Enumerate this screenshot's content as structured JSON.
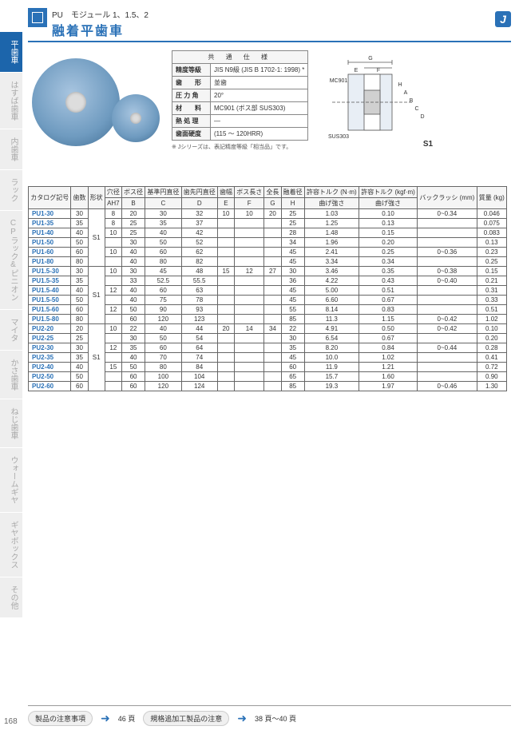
{
  "header": {
    "subtitle": "PU　モジュール 1、1.5、2",
    "title": "融着平歯車",
    "badge": "J"
  },
  "sidebar": {
    "items": [
      {
        "label": "平歯車",
        "active": true
      },
      {
        "label": "はすば歯車",
        "active": false
      },
      {
        "label": "内歯車",
        "active": false
      },
      {
        "label": "ラック",
        "active": false
      },
      {
        "label": "CPラック&ピニオン",
        "active": false
      },
      {
        "label": "マイタ",
        "active": false
      },
      {
        "label": "かさ歯車",
        "active": false
      },
      {
        "label": "ねじ歯車",
        "active": false
      },
      {
        "label": "ウォームギヤ",
        "active": false
      },
      {
        "label": "ギヤボックス",
        "active": false
      },
      {
        "label": "その他",
        "active": false
      }
    ]
  },
  "spec": {
    "caption": "共 通 仕 様",
    "rows": [
      {
        "k": "精度等級",
        "v": "JIS N9級 (JIS B 1702-1: 1998) *"
      },
      {
        "k": "歯　　形",
        "v": "並歯"
      },
      {
        "k": "圧 力 角",
        "v": "20°"
      },
      {
        "k": "材　　料",
        "v": "MC901 (ボス部 SUS303)"
      },
      {
        "k": "熱 処 理",
        "v": "—"
      },
      {
        "k": "歯面硬度",
        "v": "(115 ～ 120HRR)"
      }
    ],
    "note": "※ Jシリーズは、表記精度等級「相当品」です。"
  },
  "diagram": {
    "labels": {
      "G": "G",
      "E": "E",
      "F": "F",
      "MC": "MC901",
      "SUS": "SUS303",
      "H": "H",
      "A": "A",
      "B": "B",
      "C": "C",
      "D": "D",
      "S1": "S1"
    }
  },
  "table": {
    "headers1": [
      "カタログ記号",
      "歯数",
      "形状",
      "穴径",
      "ボス径",
      "基準円直径",
      "歯先円直径",
      "歯幅",
      "ボス長さ",
      "全長",
      "融着径",
      "許容トルク (N·m)",
      "許容トルク (kgf·m)",
      "バックラッシ (mm)",
      "質量 (kg)"
    ],
    "headers2": [
      "AH7",
      "B",
      "C",
      "D",
      "E",
      "F",
      "G",
      "H",
      "曲げ強さ",
      "曲げ強さ"
    ],
    "groups": [
      {
        "shape": "S1",
        "rows": [
          {
            "cat": "PU1-30",
            "n": "30",
            "a": "8",
            "b": "20",
            "c": "30",
            "d": "32",
            "e": "10",
            "f": "10",
            "g": "20",
            "h": "25",
            "t1": "1.03",
            "t2": "0.10",
            "bl": "0~0.34",
            "m": "0.046"
          },
          {
            "cat": "PU1-35",
            "n": "35",
            "a": "8",
            "b": "25",
            "c": "35",
            "d": "37",
            "e": "",
            "f": "",
            "g": "",
            "h": "25",
            "t1": "1.25",
            "t2": "0.13",
            "bl": "",
            "m": "0.075"
          },
          {
            "cat": "PU1-40",
            "n": "40",
            "a": "10",
            "b": "25",
            "c": "40",
            "d": "42",
            "e": "",
            "f": "",
            "g": "",
            "h": "28",
            "t1": "1.48",
            "t2": "0.15",
            "bl": "",
            "m": "0.083"
          },
          {
            "cat": "PU1-50",
            "n": "50",
            "a": "",
            "b": "30",
            "c": "50",
            "d": "52",
            "e": "",
            "f": "",
            "g": "",
            "h": "34",
            "t1": "1.96",
            "t2": "0.20",
            "bl": "",
            "m": "0.13"
          },
          {
            "cat": "PU1-60",
            "n": "60",
            "a": "10",
            "b": "40",
            "c": "60",
            "d": "62",
            "e": "",
            "f": "",
            "g": "",
            "h": "45",
            "t1": "2.41",
            "t2": "0.25",
            "bl": "0~0.36",
            "m": "0.23"
          },
          {
            "cat": "PU1-80",
            "n": "80",
            "a": "",
            "b": "40",
            "c": "80",
            "d": "82",
            "e": "",
            "f": "",
            "g": "",
            "h": "45",
            "t1": "3.34",
            "t2": "0.34",
            "bl": "",
            "m": "0.25"
          }
        ]
      },
      {
        "shape": "S1",
        "rows": [
          {
            "cat": "PU1.5-30",
            "n": "30",
            "a": "10",
            "b": "30",
            "c": "45",
            "d": "48",
            "e": "15",
            "f": "12",
            "g": "27",
            "h": "30",
            "t1": "3.46",
            "t2": "0.35",
            "bl": "0~0.38",
            "m": "0.15"
          },
          {
            "cat": "PU1.5-35",
            "n": "35",
            "a": "",
            "b": "33",
            "c": "52.5",
            "d": "55.5",
            "e": "",
            "f": "",
            "g": "",
            "h": "36",
            "t1": "4.22",
            "t2": "0.43",
            "bl": "0~0.40",
            "m": "0.21"
          },
          {
            "cat": "PU1.5-40",
            "n": "40",
            "a": "12",
            "b": "40",
            "c": "60",
            "d": "63",
            "e": "",
            "f": "",
            "g": "",
            "h": "45",
            "t1": "5.00",
            "t2": "0.51",
            "bl": "",
            "m": "0.31"
          },
          {
            "cat": "PU1.5-50",
            "n": "50",
            "a": "",
            "b": "40",
            "c": "75",
            "d": "78",
            "e": "",
            "f": "",
            "g": "",
            "h": "45",
            "t1": "6.60",
            "t2": "0.67",
            "bl": "",
            "m": "0.33"
          },
          {
            "cat": "PU1.5-60",
            "n": "60",
            "a": "12",
            "b": "50",
            "c": "90",
            "d": "93",
            "e": "",
            "f": "",
            "g": "",
            "h": "55",
            "t1": "8.14",
            "t2": "0.83",
            "bl": "",
            "m": "0.51"
          },
          {
            "cat": "PU1.5-80",
            "n": "80",
            "a": "",
            "b": "60",
            "c": "120",
            "d": "123",
            "e": "",
            "f": "",
            "g": "",
            "h": "85",
            "t1": "11.3",
            "t2": "1.15",
            "bl": "0~0.42",
            "m": "1.02"
          }
        ]
      },
      {
        "shape": "S1",
        "rows": [
          {
            "cat": "PU2-20",
            "n": "20",
            "a": "10",
            "b": "22",
            "c": "40",
            "d": "44",
            "e": "20",
            "f": "14",
            "g": "34",
            "h": "22",
            "t1": "4.91",
            "t2": "0.50",
            "bl": "0~0.42",
            "m": "0.10"
          },
          {
            "cat": "PU2-25",
            "n": "25",
            "a": "",
            "b": "30",
            "c": "50",
            "d": "54",
            "e": "",
            "f": "",
            "g": "",
            "h": "30",
            "t1": "6.54",
            "t2": "0.67",
            "bl": "",
            "m": "0.20"
          },
          {
            "cat": "PU2-30",
            "n": "30",
            "a": "12",
            "b": "35",
            "c": "60",
            "d": "64",
            "e": "",
            "f": "",
            "g": "",
            "h": "35",
            "t1": "8.20",
            "t2": "0.84",
            "bl": "0~0.44",
            "m": "0.28"
          },
          {
            "cat": "PU2-35",
            "n": "35",
            "a": "",
            "b": "40",
            "c": "70",
            "d": "74",
            "e": "",
            "f": "",
            "g": "",
            "h": "45",
            "t1": "10.0",
            "t2": "1.02",
            "bl": "",
            "m": "0.41"
          },
          {
            "cat": "PU2-40",
            "n": "40",
            "a": "15",
            "b": "50",
            "c": "80",
            "d": "84",
            "e": "",
            "f": "",
            "g": "",
            "h": "60",
            "t1": "11.9",
            "t2": "1.21",
            "bl": "",
            "m": "0.72"
          },
          {
            "cat": "PU2-50",
            "n": "50",
            "a": "",
            "b": "60",
            "c": "100",
            "d": "104",
            "e": "",
            "f": "",
            "g": "",
            "h": "65",
            "t1": "15.7",
            "t2": "1.60",
            "bl": "",
            "m": "0.90"
          },
          {
            "cat": "PU2-60",
            "n": "60",
            "a": "",
            "b": "60",
            "c": "120",
            "d": "124",
            "e": "",
            "f": "",
            "g": "",
            "h": "85",
            "t1": "19.3",
            "t2": "1.97",
            "bl": "0~0.46",
            "m": "1.30"
          }
        ]
      }
    ]
  },
  "footer": {
    "note1": "製品の注意事項",
    "page1": "46 頁",
    "note2": "規格追加工製品の注意",
    "page2": "38 頁～40 頁",
    "page_num": "168"
  },
  "colors": {
    "accent": "#2a71b7",
    "sidebar_active": "#1c65ab",
    "sidebar_inactive": "#eee",
    "border": "#666"
  }
}
